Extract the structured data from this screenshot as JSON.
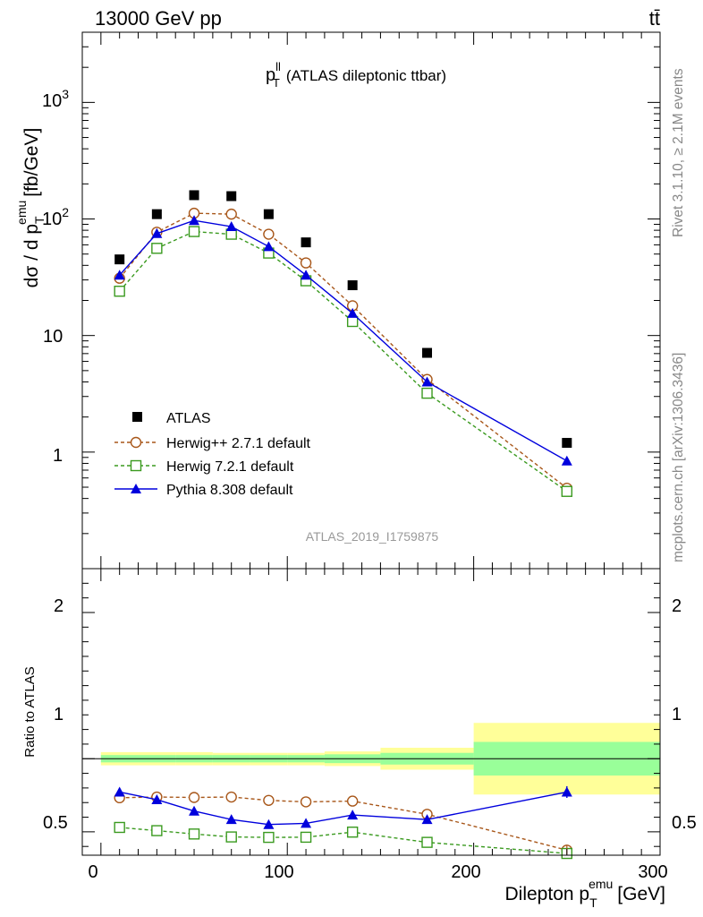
{
  "header": {
    "energy_label": "13000 GeV pp",
    "process_label": "tt̄"
  },
  "side_labels": {
    "rivet": "Rivet 3.1.10, ≥ 2.1M events",
    "mcplots": "mcplots.cern.ch [arXiv:1306.3436]"
  },
  "colors": {
    "atlas": "#000000",
    "herwigpp": "#a8571a",
    "herwig7": "#3a9a1f",
    "pythia": "#0000dd",
    "band_inner": "#99ff99",
    "band_outer": "#ffff99"
  },
  "chart_data": [
    {
      "type": "scatter",
      "title_main": "p",
      "title_sup": "ll",
      "title_sub": "T",
      "title_rest": "(ATLAS dileptonic ttbar)",
      "ylabel": "dσ / d p",
      "ylabel_sup": "emu",
      "ylabel_sub": "T",
      "ylabel_unit": "[fb/GeV]",
      "y_scale": "log",
      "ylim": [
        0.1,
        4000
      ],
      "xlim": [
        -10,
        300
      ],
      "y_tick_labels": [
        "1",
        "10",
        "10",
        "10"
      ],
      "y_tick_sups": [
        "",
        "",
        "2",
        "3"
      ],
      "watermark": "ATLAS_2019_I1759875",
      "legend_placement": "lower-left",
      "x": [
        10,
        30,
        50,
        70,
        90,
        110,
        135,
        175,
        250
      ],
      "series": [
        {
          "name": "ATLAS",
          "style": "black-square",
          "values": [
            45,
            110,
            160,
            157,
            110,
            63,
            27,
            7.1,
            1.2
          ]
        },
        {
          "name": "Herwig++ 2.7.1 default",
          "style": "open-circle-dashed",
          "values": [
            31,
            77,
            112,
            110,
            74,
            42,
            18,
            4.2,
            0.49
          ]
        },
        {
          "name": "Herwig 7.2.1 default",
          "style": "open-square-dashed",
          "values": [
            24,
            56,
            78,
            74,
            51,
            29.5,
            13.2,
            3.2,
            0.46
          ]
        },
        {
          "name": "Pythia 8.308 default",
          "style": "filled-triangle-solid",
          "values": [
            33,
            75,
            97,
            86,
            58,
            33,
            15.5,
            4.0,
            0.84
          ]
        }
      ]
    },
    {
      "type": "line",
      "ylabel": "Ratio to ATLAS",
      "xlabel": "Dilepton p",
      "xlabel_sup": "emu",
      "xlabel_sub": "T",
      "xlabel_unit": "[GeV]",
      "ylim": [
        0.34,
        2.3
      ],
      "xlim": [
        -10,
        300
      ],
      "y_ticks": [
        0.5,
        1,
        2
      ],
      "y_tick_labels": [
        "0.5",
        "1",
        "2"
      ],
      "x_ticks": [
        0,
        100,
        200,
        300
      ],
      "x_tick_labels": [
        "0",
        "100",
        "200",
        "300"
      ],
      "bands": [
        {
          "x0": 0,
          "x1": 20,
          "inner": [
            0.975,
            1.025
          ],
          "outer": [
            0.955,
            1.045
          ]
        },
        {
          "x0": 20,
          "x1": 40,
          "inner": [
            0.975,
            1.025
          ],
          "outer": [
            0.955,
            1.045
          ]
        },
        {
          "x0": 40,
          "x1": 60,
          "inner": [
            0.975,
            1.025
          ],
          "outer": [
            0.955,
            1.045
          ]
        },
        {
          "x0": 60,
          "x1": 80,
          "inner": [
            0.975,
            1.025
          ],
          "outer": [
            0.955,
            1.04
          ]
        },
        {
          "x0": 80,
          "x1": 100,
          "inner": [
            0.975,
            1.025
          ],
          "outer": [
            0.955,
            1.04
          ]
        },
        {
          "x0": 100,
          "x1": 120,
          "inner": [
            0.975,
            1.025
          ],
          "outer": [
            0.955,
            1.04
          ]
        },
        {
          "x0": 120,
          "x1": 150,
          "inner": [
            0.97,
            1.03
          ],
          "outer": [
            0.95,
            1.05
          ]
        },
        {
          "x0": 150,
          "x1": 200,
          "inner": [
            0.96,
            1.04
          ],
          "outer": [
            0.925,
            1.075
          ]
        },
        {
          "x0": 200,
          "x1": 300,
          "inner": [
            0.885,
            1.115
          ],
          "outer": [
            0.755,
            1.245
          ]
        }
      ],
      "x": [
        10,
        30,
        50,
        70,
        90,
        110,
        135,
        175,
        250
      ],
      "series": [
        {
          "name": "Herwig++ 2.7.1 default",
          "values": [
            0.733,
            0.738,
            0.735,
            0.738,
            0.715,
            0.705,
            0.71,
            0.62,
            0.375
          ]
        },
        {
          "name": "Herwig 7.2.1 default",
          "values": [
            0.53,
            0.508,
            0.485,
            0.465,
            0.462,
            0.463,
            0.498,
            0.428,
            0.352
          ]
        },
        {
          "name": "Pythia 8.308 default",
          "values": [
            0.772,
            0.72,
            0.642,
            0.584,
            0.55,
            0.558,
            0.615,
            0.584,
            0.772
          ]
        }
      ]
    }
  ]
}
